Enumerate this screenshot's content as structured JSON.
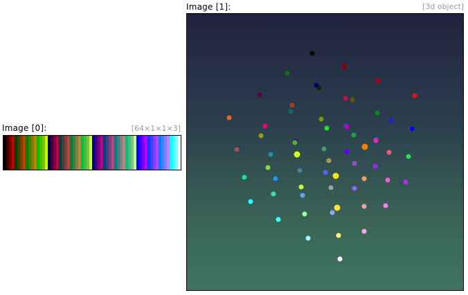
{
  "image0": {
    "label": "Image [0]:",
    "dims": "[64×1×1×3]"
  },
  "image1": {
    "label": "Image [1]:",
    "dims": "[3d object]"
  },
  "strip_colors": [
    "#000000",
    "#400000",
    "#800000",
    "#c00000",
    "#004000",
    "#404000",
    "#804000",
    "#c04000",
    "#008000",
    "#408000",
    "#808000",
    "#c08000",
    "#00c000",
    "#40c000",
    "#80c000",
    "#c0ff00",
    "#000040",
    "#400040",
    "#800040",
    "#c00040",
    "#004040",
    "#404040",
    "#804040",
    "#c04040",
    "#008040",
    "#408040",
    "#808040",
    "#c08040",
    "#00c040",
    "#40c040",
    "#80c040",
    "#c0ff40",
    "#000080",
    "#400080",
    "#800080",
    "#c00080",
    "#004080",
    "#404080",
    "#804080",
    "#c04080",
    "#008080",
    "#408080",
    "#808080",
    "#c08080",
    "#00c080",
    "#40c080",
    "#80c080",
    "#c0ff80",
    "#0000ff",
    "#4000ff",
    "#8000ff",
    "#c000ff",
    "#0040ff",
    "#4040ff",
    "#8040ff",
    "#c040ff",
    "#0080ff",
    "#4080ff",
    "#8080ff",
    "#c080ff",
    "#00ffff",
    "#40ffff",
    "#80ffff",
    "#ffffff"
  ],
  "points": [
    {
      "c": "#000000"
    },
    {
      "c": "#8b0000"
    },
    {
      "c": "#b00010"
    },
    {
      "c": "#e01020"
    },
    {
      "c": "#107010"
    },
    {
      "c": "#202000"
    },
    {
      "c": "#000060"
    },
    {
      "c": "#605800"
    },
    {
      "c": "#600050"
    },
    {
      "c": "#a04020"
    },
    {
      "c": "#c01050"
    },
    {
      "c": "#108020"
    },
    {
      "c": "#107050"
    },
    {
      "c": "#70a000"
    },
    {
      "c": "#2020d0"
    },
    {
      "c": "#606060"
    },
    {
      "c": "#f06020"
    },
    {
      "c": "#f00080"
    },
    {
      "c": "#20e020"
    },
    {
      "c": "#20a040"
    },
    {
      "c": "#90a000"
    },
    {
      "c": "#6000a0"
    },
    {
      "c": "#2060c0"
    },
    {
      "c": "#0000ff"
    },
    {
      "c": "#a05050"
    },
    {
      "c": "#40c020"
    },
    {
      "c": "#40a060"
    },
    {
      "c": "#c000c0"
    },
    {
      "c": "#4060c0"
    },
    {
      "c": "#f08000"
    },
    {
      "c": "#f06070"
    },
    {
      "c": "#30e050"
    },
    {
      "c": "#2090a0"
    },
    {
      "c": "#6000ff"
    },
    {
      "c": "#f020c0"
    },
    {
      "c": "#d0ff20"
    },
    {
      "c": "#a0a060"
    },
    {
      "c": "#9050c0"
    },
    {
      "c": "#80e040"
    },
    {
      "c": "#4080a0"
    },
    {
      "c": "#a020ff"
    },
    {
      "c": "#20e090"
    },
    {
      "c": "#6060ff"
    },
    {
      "c": "#ffe020"
    },
    {
      "c": "#2090ff"
    },
    {
      "c": "#f0a060"
    },
    {
      "c": "#f060d0"
    },
    {
      "c": "#c020ff"
    },
    {
      "c": "#c0ff40"
    },
    {
      "c": "#a0a0a0"
    },
    {
      "c": "#9060ff"
    },
    {
      "c": "#40e0a0"
    },
    {
      "c": "#60a0ff"
    },
    {
      "c": "#20ffff"
    },
    {
      "c": "#ffe040"
    },
    {
      "c": "#f0a0a0"
    },
    {
      "c": "#f080f0"
    },
    {
      "c": "#a0a0ff"
    },
    {
      "c": "#a0ffa0"
    },
    {
      "c": "#40ffff"
    },
    {
      "c": "#ffff80"
    },
    {
      "c": "#ffa0ff"
    },
    {
      "c": "#a0ffff"
    },
    {
      "c": "#ffffff"
    }
  ]
}
